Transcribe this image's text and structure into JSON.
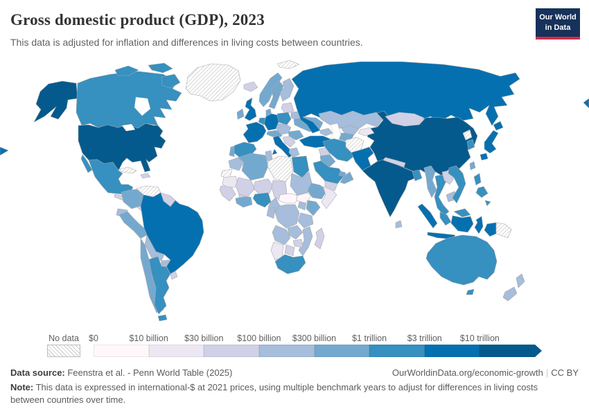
{
  "header": {
    "title": "Gross domestic product (GDP), 2023",
    "subtitle": "This data is adjusted for inflation and differences in living costs between countries.",
    "logo": {
      "line1": "Our World",
      "line2": "in Data",
      "bg_color": "#16325a",
      "accent_color": "#d42b4b"
    }
  },
  "legend": {
    "no_data_label": "No data",
    "labels": [
      "$0",
      "$10 billion",
      "$30 billion",
      "$100 billion",
      "$300 billion",
      "$1 trillion",
      "$3 trillion",
      "$10 trillion"
    ],
    "colors": [
      "#fff7fb",
      "#ece7f2",
      "#d0d1e6",
      "#a6bddb",
      "#74a9cf",
      "#3690c0",
      "#0570b0",
      "#045a8d"
    ]
  },
  "footer": {
    "datasource_label": "Data source:",
    "datasource_text": " Feenstra et al. - Penn World Table (2025)",
    "link": "OurWorldinData.org/economic-growth",
    "separator": "|",
    "license": "CC BY",
    "note_label": "Note:",
    "note_text": " This data is expressed in international-$ at 2021 prices, using multiple benchmark years to adjust for differences in living costs between countries over time."
  },
  "chart_data": {
    "type": "choropleth_map",
    "title": "Gross domestic product (GDP), 2023",
    "legend_bins": [
      "$0",
      "$10 billion",
      "$30 billion",
      "$100 billion",
      "$300 billion",
      "$1 trillion",
      "$3 trillion",
      "$10 trillion"
    ],
    "no_data_style": "diagonal-hatch",
    "countries": {
      "united-states": 7,
      "canada": 5,
      "greenland": "no_data",
      "mexico": 5,
      "cuba": "no_data",
      "hispaniola": 2,
      "central-america": 2,
      "venezuela": "no_data",
      "colombia": 4,
      "guyanas": 2,
      "ecuador": 3,
      "peru": 4,
      "brazil": 6,
      "bolivia": 3,
      "paraguay": 3,
      "chile": 4,
      "argentina": 5,
      "uruguay": 2,
      "iceland": 2,
      "ireland": 4,
      "united-kingdom": 6,
      "norway": 4,
      "sweden": 4,
      "finland": 3,
      "denmark": 4,
      "baltics": 2,
      "belarus": 3,
      "poland": 5,
      "germany": 6,
      "benelux": 5,
      "france": 6,
      "swiss-austria": 4,
      "czech-hungary": 3,
      "spain": 5,
      "portugal": 4,
      "italy": 6,
      "balkans": 2,
      "romania": 4,
      "ukraine": 4,
      "greece": 3,
      "russia": 6,
      "svalbard": "no_data",
      "kazakhstan": 3,
      "uzbekistan": 3,
      "turkmenistan": 4,
      "kyrgyz-tajik": 1,
      "caucasus": 3,
      "turkey": 6,
      "syria": 2,
      "iraq": 4,
      "saudi-arabia": 5,
      "yemen": 2,
      "oman": 4,
      "uae": 4,
      "iran": 5,
      "afghanistan": "no_data",
      "pakistan": 6,
      "india": 7,
      "nepal": 2,
      "bangladesh": 5,
      "sri-lanka": 3,
      "china": 7,
      "mongolia": 2,
      "north-korea": "no_data",
      "south-korea": 5,
      "japan": 6,
      "taiwan": 4,
      "myanmar": 4,
      "thailand": 5,
      "laos": 2,
      "cambodia": 3,
      "vietnam": 5,
      "malaysia": 5,
      "philippines": 5,
      "indonesia": 6,
      "papua-new-guinea": "no_data",
      "australia": 5,
      "new-zealand": 3,
      "morocco": 3,
      "western-sahara": "no_data",
      "algeria": 4,
      "tunisia": 3,
      "libya": "no_data",
      "egypt": 5,
      "mauritania": 1,
      "mali": 2,
      "niger": 2,
      "chad": 2,
      "sudan": 3,
      "senegal-guinea": 2,
      "burkina-faso": 2,
      "ivory-ghana": 4,
      "nigeria": 5,
      "cameroon": 3,
      "central-african-republic": 0,
      "south-sudan": 0,
      "ethiopia": 4,
      "somalia": 1,
      "kenya": 4,
      "uganda": 3,
      "dr-congo": 3,
      "congo-gabon": 3,
      "tanzania": 3,
      "angola": 3,
      "zambia": 3,
      "mozambique": 3,
      "zimbabwe": 2,
      "botswana": 2,
      "namibia": 1,
      "south-africa": 5,
      "madagascar": 2
    }
  }
}
